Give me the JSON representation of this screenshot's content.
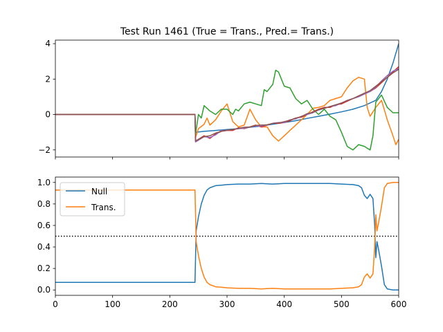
{
  "chart_data": [
    {
      "type": "line",
      "title": "Test Run 1461 (True = Trans., Pred.= Trans.)",
      "xlabel": "",
      "ylabel": "",
      "xlim": [
        0,
        600
      ],
      "ylim": [
        -2.4,
        4.2
      ],
      "xticks": [
        0,
        100,
        200,
        300,
        400,
        500,
        600
      ],
      "xtick_labels_shown": false,
      "yticks": [
        -2,
        0,
        2,
        4
      ],
      "ytick_labels": [
        "−2",
        "0",
        "2",
        "4"
      ],
      "grid": false,
      "colors": [
        "#1f77b4",
        "#ff7f0e",
        "#2ca02c",
        "#d62728",
        "#9467bd",
        "#8c564b"
      ],
      "series": [
        {
          "x": [
            0,
            244,
            245,
            260,
            280,
            300,
            320,
            340,
            360,
            380,
            400,
            420,
            440,
            460,
            480,
            500,
            520,
            540,
            560,
            570,
            580,
            590,
            600
          ],
          "values": [
            0,
            0,
            -1.0,
            -0.95,
            -0.9,
            -0.85,
            -0.8,
            -0.72,
            -0.65,
            -0.55,
            -0.45,
            -0.35,
            -0.22,
            -0.1,
            0.02,
            0.15,
            0.3,
            0.5,
            0.8,
            1.3,
            2.0,
            2.9,
            4.0
          ]
        },
        {
          "x": [
            0,
            244,
            245,
            250,
            260,
            265,
            270,
            280,
            290,
            300,
            310,
            320,
            330,
            340,
            350,
            360,
            370,
            380,
            390,
            400,
            410,
            420,
            430,
            440,
            450,
            460,
            470,
            480,
            490,
            500,
            510,
            520,
            530,
            540,
            545,
            550,
            560,
            570,
            580,
            590,
            595,
            600
          ],
          "values": [
            0,
            0,
            -1.3,
            -0.8,
            -0.55,
            -0.2,
            -0.6,
            -0.3,
            0.2,
            0.6,
            -0.4,
            -0.7,
            -0.6,
            0.3,
            -0.3,
            -0.7,
            -0.7,
            -1.2,
            -1.5,
            -1.2,
            -0.9,
            -0.6,
            -0.3,
            0.0,
            0.35,
            0.4,
            0.5,
            0.8,
            0.9,
            1.0,
            1.5,
            1.9,
            2.1,
            2.0,
            0.4,
            -0.1,
            0.4,
            0.8,
            -0.3,
            -1.2,
            -1.7,
            -1.4
          ]
        },
        {
          "x": [
            0,
            244,
            245,
            250,
            255,
            260,
            270,
            280,
            290,
            300,
            310,
            315,
            320,
            330,
            340,
            350,
            360,
            365,
            370,
            380,
            385,
            390,
            395,
            400,
            410,
            420,
            430,
            440,
            450,
            460,
            470,
            480,
            490,
            500,
            510,
            520,
            530,
            540,
            545,
            550,
            555,
            560,
            570,
            580,
            590,
            600
          ],
          "values": [
            0,
            0,
            -1.1,
            0.0,
            -0.2,
            0.5,
            0.2,
            0.0,
            0.3,
            0.3,
            0.0,
            0.3,
            0.2,
            0.6,
            0.7,
            0.6,
            0.5,
            1.4,
            1.3,
            1.7,
            2.5,
            2.4,
            2.0,
            1.6,
            1.5,
            0.9,
            0.6,
            0.8,
            0.3,
            0.0,
            0.3,
            -0.1,
            -0.3,
            -1.0,
            -1.8,
            -2.0,
            -1.7,
            -1.8,
            -1.9,
            -2.0,
            -1.2,
            0.7,
            1.1,
            0.4,
            0.1,
            0.1
          ]
        },
        {
          "x": [
            0,
            244,
            245,
            250,
            260,
            270,
            280,
            290,
            300,
            310,
            320,
            330,
            340,
            350,
            360,
            370,
            380,
            390,
            400,
            410,
            420,
            430,
            440,
            450,
            460,
            470,
            480,
            490,
            500,
            510,
            520,
            530,
            540,
            550,
            560,
            570,
            580,
            590,
            600
          ],
          "values": [
            0,
            0,
            -1.5,
            -1.4,
            -1.2,
            -1.35,
            -1.1,
            -0.95,
            -0.9,
            -0.9,
            -0.75,
            -0.8,
            -0.7,
            -0.6,
            -0.7,
            -0.6,
            -0.5,
            -0.5,
            -0.45,
            -0.35,
            -0.2,
            -0.15,
            0.0,
            0.15,
            0.3,
            0.4,
            0.4,
            0.55,
            0.6,
            0.75,
            0.9,
            1.05,
            1.2,
            1.3,
            1.5,
            1.8,
            2.1,
            2.4,
            2.7
          ]
        },
        {
          "x": [
            0,
            244,
            245,
            250,
            260,
            270,
            280,
            290,
            300,
            310,
            320,
            330,
            340,
            350,
            360,
            370,
            380,
            390,
            400,
            410,
            420,
            430,
            440,
            450,
            460,
            470,
            480,
            490,
            500,
            510,
            520,
            530,
            540,
            550,
            560,
            570,
            580,
            590,
            600
          ],
          "values": [
            0,
            0,
            -1.55,
            -1.45,
            -1.25,
            -1.3,
            -1.15,
            -0.9,
            -0.9,
            -0.85,
            -0.8,
            -0.78,
            -0.7,
            -0.65,
            -0.65,
            -0.6,
            -0.5,
            -0.45,
            -0.45,
            -0.3,
            -0.25,
            -0.1,
            0.0,
            0.1,
            0.25,
            0.35,
            0.45,
            0.5,
            0.65,
            0.8,
            0.9,
            1.0,
            1.15,
            1.3,
            1.55,
            1.9,
            2.2,
            2.45,
            2.6
          ]
        },
        {
          "x": [
            0,
            244,
            245,
            250,
            260,
            270,
            280,
            290,
            300,
            310,
            320,
            330,
            340,
            350,
            360,
            370,
            380,
            390,
            400,
            410,
            420,
            430,
            440,
            450,
            460,
            470,
            480,
            490,
            500,
            510,
            520,
            530,
            540,
            550,
            560,
            570,
            580,
            590,
            600
          ],
          "values": [
            0,
            0,
            -1.5,
            -1.4,
            -1.25,
            -1.2,
            -1.05,
            -0.95,
            -0.88,
            -0.85,
            -0.78,
            -0.72,
            -0.7,
            -0.62,
            -0.6,
            -0.58,
            -0.5,
            -0.48,
            -0.4,
            -0.32,
            -0.2,
            -0.12,
            0.05,
            0.12,
            0.28,
            0.35,
            0.45,
            0.55,
            0.65,
            0.78,
            0.9,
            1.05,
            1.2,
            1.35,
            1.6,
            1.85,
            2.1,
            2.35,
            2.55
          ]
        }
      ]
    },
    {
      "type": "line",
      "title": "",
      "xlabel": "",
      "ylabel": "",
      "xlim": [
        0,
        600
      ],
      "ylim": [
        -0.05,
        1.05
      ],
      "xticks": [
        0,
        100,
        200,
        300,
        400,
        500,
        600
      ],
      "xtick_labels": [
        "0",
        "100",
        "200",
        "300",
        "400",
        "500",
        "600"
      ],
      "yticks": [
        0.0,
        0.2,
        0.4,
        0.6,
        0.8,
        1.0
      ],
      "ytick_labels": [
        "0.0",
        "0.2",
        "0.4",
        "0.6",
        "0.8",
        "1.0"
      ],
      "grid": false,
      "legend": {
        "position": "upper-left"
      },
      "threshold": {
        "y": 0.5,
        "style": "dotted",
        "color": "#000000"
      },
      "series": [
        {
          "name": "Null",
          "color": "#1f77b4",
          "x": [
            0,
            243,
            244,
            246,
            250,
            255,
            260,
            265,
            270,
            280,
            290,
            300,
            320,
            340,
            360,
            380,
            400,
            420,
            440,
            460,
            480,
            500,
            520,
            530,
            535,
            540,
            545,
            550,
            555,
            558,
            560,
            562,
            565,
            570,
            575,
            580,
            590,
            600
          ],
          "values": [
            0.07,
            0.07,
            0.07,
            0.55,
            0.68,
            0.8,
            0.88,
            0.93,
            0.95,
            0.97,
            0.975,
            0.98,
            0.985,
            0.985,
            0.99,
            0.985,
            0.99,
            0.99,
            0.99,
            0.99,
            0.99,
            0.985,
            0.98,
            0.97,
            0.95,
            0.88,
            0.85,
            0.89,
            0.85,
            0.6,
            0.3,
            0.45,
            0.37,
            0.22,
            0.05,
            0.01,
            0.0,
            0.0
          ]
        },
        {
          "name": "Trans.",
          "color": "#ff7f0e",
          "x": [
            0,
            243,
            244,
            246,
            250,
            255,
            260,
            265,
            270,
            280,
            290,
            300,
            320,
            340,
            360,
            380,
            400,
            420,
            440,
            460,
            480,
            500,
            520,
            530,
            535,
            540,
            545,
            550,
            555,
            558,
            560,
            562,
            565,
            570,
            575,
            580,
            590,
            600
          ],
          "values": [
            0.93,
            0.93,
            0.93,
            0.45,
            0.32,
            0.2,
            0.12,
            0.07,
            0.05,
            0.03,
            0.025,
            0.02,
            0.015,
            0.015,
            0.01,
            0.015,
            0.01,
            0.01,
            0.01,
            0.01,
            0.01,
            0.015,
            0.02,
            0.03,
            0.05,
            0.12,
            0.15,
            0.11,
            0.15,
            0.4,
            0.7,
            0.55,
            0.63,
            0.78,
            0.95,
            0.99,
            1.0,
            1.0
          ]
        }
      ]
    }
  ]
}
